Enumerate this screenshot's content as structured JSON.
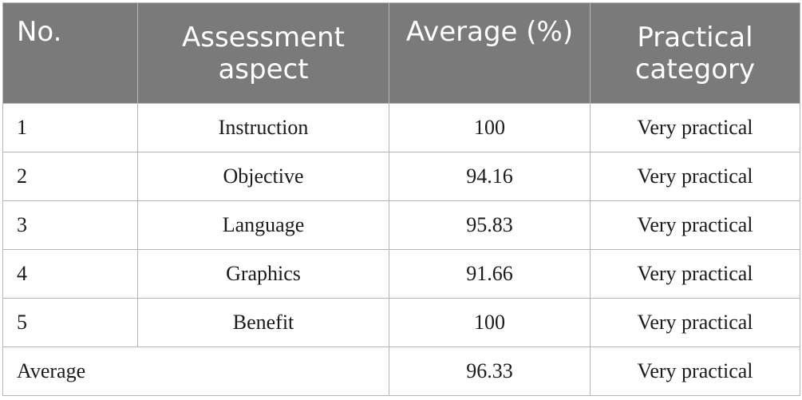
{
  "table": {
    "headers": [
      {
        "line1": "No.",
        "line2": ""
      },
      {
        "line1": "Assessment",
        "line2": "aspect"
      },
      {
        "line1": "Average (%)",
        "line2": ""
      },
      {
        "line1": "Practical",
        "line2": "category"
      }
    ],
    "rows": [
      {
        "no": "1",
        "aspect": "Instruction",
        "average": "100",
        "category": "Very practical"
      },
      {
        "no": "2",
        "aspect": "Objective",
        "average": "94.16",
        "category": "Very practical"
      },
      {
        "no": "3",
        "aspect": "Language",
        "average": "95.83",
        "category": "Very practical"
      },
      {
        "no": "4",
        "aspect": "Graphics",
        "average": "91.66",
        "category": "Very practical"
      },
      {
        "no": "5",
        "aspect": "Benefit",
        "average": "100",
        "category": "Very practical"
      }
    ],
    "summary": {
      "label": "Average",
      "average": "96.33",
      "category": "Very practical"
    },
    "colors": {
      "header_bg": "#7a7a7a",
      "header_text": "#ffffff",
      "border": "#b5b5b5"
    }
  }
}
